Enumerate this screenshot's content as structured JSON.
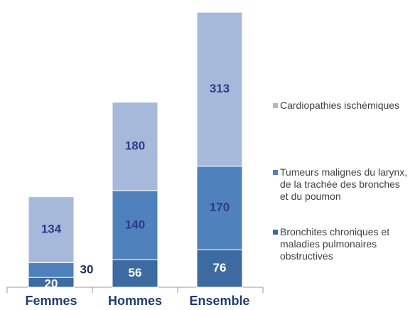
{
  "chart_data": {
    "type": "stacked_bar",
    "categories": [
      "Femmes",
      "Hommes",
      "Ensemble"
    ],
    "series": [
      {
        "name": "Bronchites chroniques et maladies pulmonaires obstructives",
        "color": "#3d6aa0",
        "values": [
          20,
          56,
          76
        ]
      },
      {
        "name": "Tumeurs malignes du larynx, de la trachée des bronches et du poumon",
        "color": "#4f81bd",
        "values": [
          30,
          140,
          170
        ]
      },
      {
        "name": "Cardiopathies ischémiques",
        "color": "#a7b9db",
        "values": [
          134,
          180,
          313
        ]
      }
    ],
    "legend": "right"
  }
}
